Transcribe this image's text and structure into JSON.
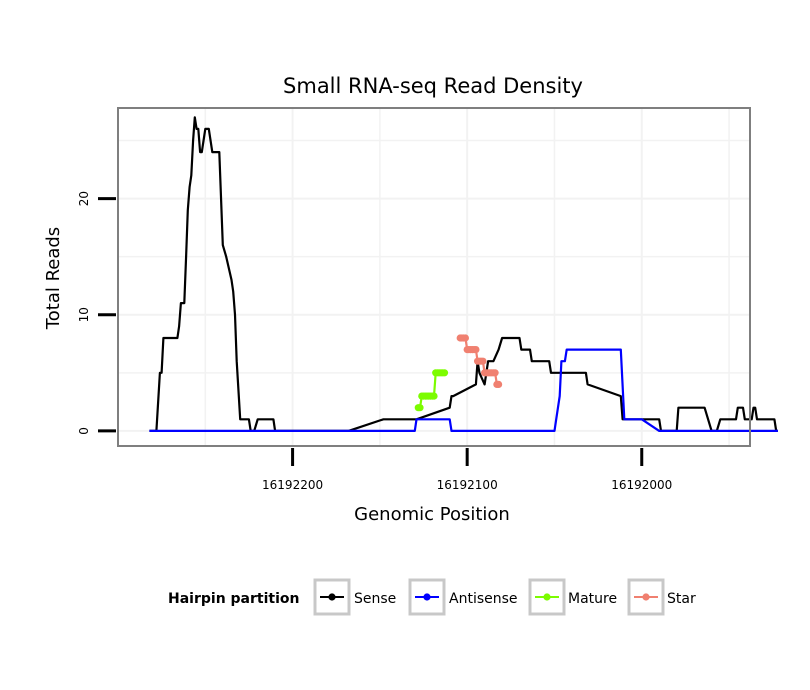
{
  "chart_data": {
    "type": "line",
    "title": "Small RNA-seq Read Density",
    "xlabel": "Genomic Position",
    "ylabel": "Total Reads",
    "x_reversed": true,
    "xlim": [
      16191938,
      16192300
    ],
    "ylim": [
      -1.3,
      27.8
    ],
    "x_ticks": [
      16192200,
      16192100,
      16192000
    ],
    "x_tick_labels": [
      "16192200",
      "16192100",
      "16192000"
    ],
    "y_ticks": [
      0,
      10,
      20
    ],
    "y_tick_labels": [
      "0",
      "10",
      "20"
    ],
    "grid": true,
    "legend": {
      "title": "Hairpin partition",
      "placement": "bottom",
      "entries": [
        "Sense",
        "Antisense",
        "Mature",
        "Star"
      ]
    },
    "series": [
      {
        "name": "Sense",
        "color": "#000000",
        "marker": false,
        "x": [
          16192282,
          16192278,
          16192276,
          16192275,
          16192274,
          16192272,
          16192266,
          16192265,
          16192264,
          16192262,
          16192261,
          16192260,
          16192259,
          16192258,
          16192257,
          16192256,
          16192255,
          16192254,
          16192253,
          16192252,
          16192250,
          16192248,
          16192246,
          16192245,
          16192242,
          16192240,
          16192238,
          16192235,
          16192234,
          16192233,
          16192232,
          16192230,
          16192228,
          16192227,
          16192225,
          16192224,
          16192222,
          16192220,
          16192216,
          16192212,
          16192211,
          16192210,
          16192209,
          16192190,
          16192189,
          16192168,
          16192148,
          16192130,
          16192129,
          16192110,
          16192109,
          16192108,
          16192095,
          16192094,
          16192093,
          16192090,
          16192088,
          16192085,
          16192082,
          16192080,
          16192070,
          16192069,
          16192064,
          16192063,
          16192053,
          16192052,
          16192032,
          16192031,
          16192012,
          16192011,
          16192000,
          16191990,
          16191989,
          16191980,
          16191979,
          16191965,
          16191964,
          16191960,
          16191957,
          16191955,
          16191950,
          16191949,
          16191946,
          16191945,
          16191944,
          16191943,
          16191942,
          16191941,
          16191937,
          16191936,
          16191935,
          16191934,
          16191932,
          16191930,
          16191929,
          16191927,
          16191926,
          16191925,
          16191924,
          16191923,
          16191922
        ],
        "y": [
          0,
          0,
          5,
          5,
          8,
          8,
          8,
          9,
          11,
          11,
          15,
          19,
          21,
          22,
          25,
          27,
          26,
          26,
          24,
          24,
          26,
          26,
          24,
          24,
          24,
          16,
          15,
          13,
          12,
          10,
          6,
          1,
          1,
          1,
          1,
          0,
          0,
          1,
          1,
          1,
          1,
          0,
          0,
          0,
          0,
          0,
          1,
          1,
          1,
          2,
          3,
          3,
          4,
          6,
          5,
          4,
          6,
          6,
          7,
          8,
          8,
          7,
          7,
          6,
          6,
          5,
          5,
          4,
          3,
          1,
          1,
          1,
          0,
          0,
          2,
          2,
          2,
          0,
          0,
          1,
          1,
          1,
          1,
          2,
          2,
          2,
          2,
          1,
          1,
          2,
          2,
          1,
          1,
          1,
          1,
          1,
          1,
          1,
          1,
          0,
          0
        ]
      },
      {
        "name": "Antisense",
        "color": "#0000ff",
        "marker": false,
        "x": [
          16192282,
          16192130,
          16192129,
          16192110,
          16192109,
          16192050,
          16192049,
          16192047,
          16192046,
          16192044,
          16192043,
          16192042,
          16192041,
          16192040,
          16192039,
          16192035,
          16192030,
          16192020,
          16192012,
          16192010,
          16192000,
          16191990,
          16191922
        ],
        "y": [
          0,
          0,
          1,
          1,
          0,
          0,
          1,
          3,
          6,
          6,
          7,
          7,
          7,
          7,
          7,
          7,
          7,
          7,
          7,
          1,
          1,
          0,
          0
        ]
      },
      {
        "name": "Mature",
        "color": "#7cfc00",
        "marker": true,
        "x": [
          16192128,
          16192127,
          16192126,
          16192125,
          16192124,
          16192123,
          16192122,
          16192121,
          16192120,
          16192119,
          16192118,
          16192117,
          16192116,
          16192115,
          16192114,
          16192113
        ],
        "y": [
          2,
          2,
          3,
          3,
          3,
          3,
          3,
          3,
          3,
          3,
          5,
          5,
          5,
          5,
          5,
          5
        ]
      },
      {
        "name": "Star",
        "color": "#f08070",
        "marker": true,
        "x": [
          16192104,
          16192103,
          16192102,
          16192101,
          16192100,
          16192099,
          16192098,
          16192097,
          16192096,
          16192095,
          16192094,
          16192093,
          16192092,
          16192091,
          16192090,
          16192089,
          16192088,
          16192087,
          16192086,
          16192085,
          16192084,
          16192083,
          16192082
        ],
        "y": [
          8,
          8,
          8,
          8,
          7,
          7,
          7,
          7,
          7,
          7,
          6,
          6,
          6,
          6,
          5,
          5,
          5,
          5,
          5,
          5,
          5,
          4,
          4
        ]
      }
    ]
  }
}
